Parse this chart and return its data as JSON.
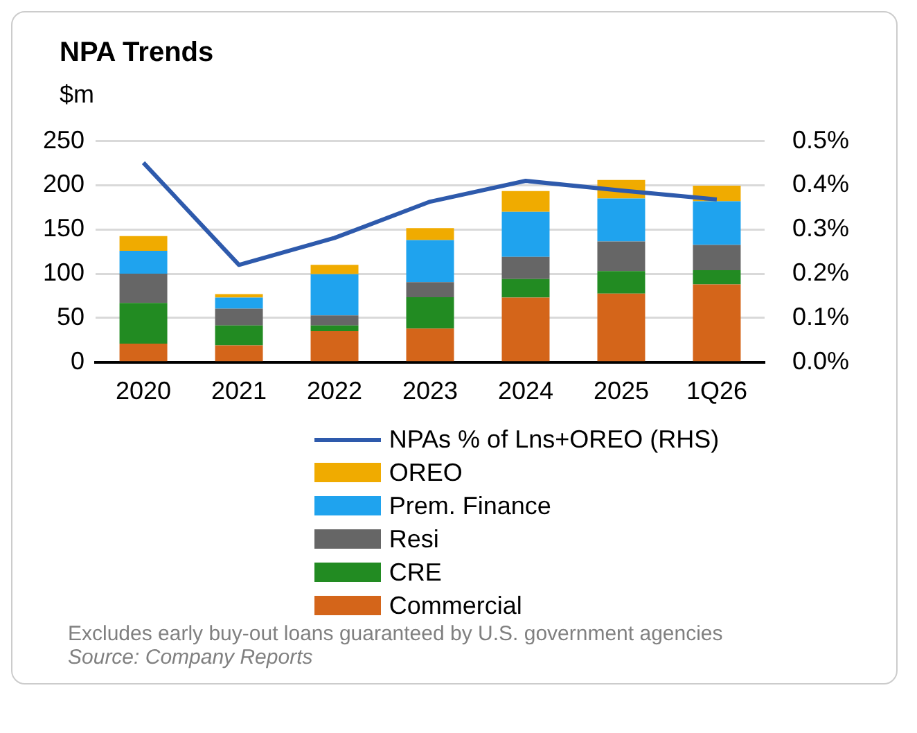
{
  "chart_data": {
    "type": "bar",
    "title": "NPA Trends",
    "ylabel": "$m",
    "categories": [
      "2020",
      "2021",
      "2022",
      "2023",
      "2024",
      "2025",
      "1Q26"
    ],
    "stacked": true,
    "series": [
      {
        "name": "Commercial",
        "color": "#d4651a",
        "values": [
          21,
          19,
          35,
          38,
          73,
          77.5,
          88
        ]
      },
      {
        "name": "CRE",
        "color": "#228b22",
        "values": [
          46,
          22.5,
          6.5,
          35.5,
          21,
          25.5,
          16
        ]
      },
      {
        "name": "Resi",
        "color": "#666666",
        "values": [
          33,
          19,
          11.5,
          17,
          25,
          33.5,
          28.5
        ]
      },
      {
        "name": "Prem. Finance",
        "color": "#1fa3ee",
        "values": [
          26,
          12.5,
          46.5,
          47.5,
          51,
          48.5,
          49.5
        ]
      },
      {
        "name": "OREO",
        "color": "#f0ab00",
        "values": [
          16.5,
          4,
          10.5,
          13.5,
          23.5,
          21,
          17.5
        ]
      },
      {
        "name": "NPAs % of Lns+OREO (RHS)",
        "type": "line",
        "axis": "y2",
        "color": "#2e5aac",
        "values": [
          0.451,
          0.22,
          0.281,
          0.363,
          0.41,
          0.388,
          0.368
        ]
      }
    ],
    "ylim": [
      0,
      250
    ],
    "yticks": [
      0,
      50,
      100,
      150,
      200,
      250
    ],
    "y2lim": [
      0,
      0.5
    ],
    "y2ticks": [
      {
        "value": 0,
        "label": "0.0%"
      },
      {
        "value": 0.1,
        "label": "0.1%"
      },
      {
        "value": 0.2,
        "label": "0.2%"
      },
      {
        "value": 0.3,
        "label": "0.3%"
      },
      {
        "value": 0.4,
        "label": "0.4%"
      },
      {
        "value": 0.5,
        "label": "0.5%"
      }
    ],
    "grid": "y",
    "legend": "bottom",
    "marker": "none",
    "annotations": [
      "Excludes early buy-out loans guaranteed by U.S. government agencies",
      "Source: Company Reports"
    ]
  }
}
